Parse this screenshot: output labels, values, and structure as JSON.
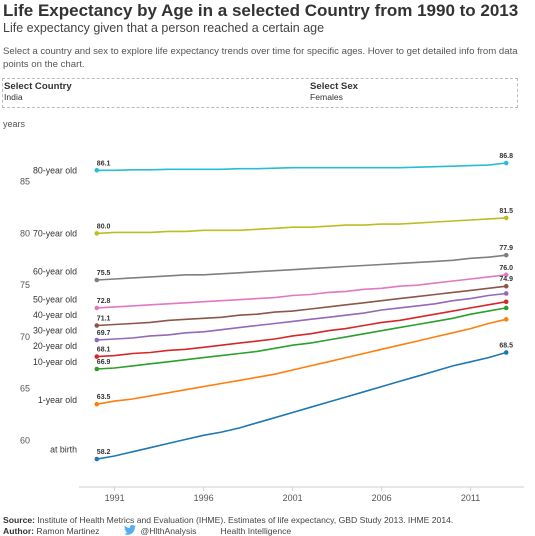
{
  "header": {
    "title": "Life Expectancy by Age in a selected Country from 1990 to 2013",
    "subtitle": "Life expectancy given that a person reached a certain age",
    "description": "Select a country and sex to explore life expectancy trends over time for specific ages. Hover to get detailed info from data points on the chart."
  },
  "filters": {
    "country": {
      "label": "Select Country",
      "value": "India"
    },
    "sex": {
      "label": "Select Sex",
      "value": "Females"
    }
  },
  "footer": {
    "source_label": "Source:",
    "source_text": "Institute of Health Metrics and Evaluation (IHME). Estimates of life expectancy, GBD Study 2013. IHME 2014.",
    "author_label": "Author:",
    "author_name": "Ramon Martinez",
    "twitter_icon": "twitter-bird-icon",
    "twitter_handle": "@HlthAnalysis",
    "org": "Health Intelligence"
  },
  "chart_data": {
    "type": "line",
    "yunit": "years",
    "xlim": [
      1989,
      2014
    ],
    "ylim": [
      55.5,
      89.8
    ],
    "xticks": [
      1991,
      1996,
      2001,
      2006,
      2011
    ],
    "yticks": [
      60,
      65,
      70,
      75,
      80,
      85
    ],
    "grid": false,
    "x": [
      1990,
      1991,
      1992,
      1993,
      1994,
      1995,
      1996,
      1997,
      1998,
      1999,
      2000,
      2001,
      2002,
      2003,
      2004,
      2005,
      2006,
      2007,
      2008,
      2009,
      2010,
      2011,
      2012,
      2013
    ],
    "series": [
      {
        "name": "80-year old",
        "color": "#2bbcd4",
        "start_label": "86.1",
        "end_label": "86.8",
        "values": [
          86.1,
          86.1,
          86.15,
          86.15,
          86.2,
          86.2,
          86.2,
          86.2,
          86.25,
          86.25,
          86.3,
          86.35,
          86.35,
          86.35,
          86.35,
          86.35,
          86.35,
          86.35,
          86.4,
          86.45,
          86.5,
          86.55,
          86.6,
          86.8
        ]
      },
      {
        "name": "70-year old",
        "color": "#bcbd22",
        "start_label": "80.0",
        "end_label": "81.5",
        "values": [
          80.0,
          80.1,
          80.1,
          80.1,
          80.2,
          80.2,
          80.3,
          80.3,
          80.3,
          80.4,
          80.5,
          80.6,
          80.6,
          80.7,
          80.8,
          80.8,
          80.9,
          80.9,
          81.0,
          81.1,
          81.2,
          81.3,
          81.4,
          81.5
        ]
      },
      {
        "name": "60-year old",
        "color": "#7f7f7f",
        "start_label": "75.5",
        "end_label": "77.9",
        "values": [
          75.5,
          75.6,
          75.7,
          75.8,
          75.9,
          76.0,
          76.0,
          76.1,
          76.2,
          76.3,
          76.4,
          76.5,
          76.6,
          76.7,
          76.8,
          76.9,
          77.0,
          77.1,
          77.2,
          77.3,
          77.4,
          77.6,
          77.7,
          77.9
        ]
      },
      {
        "name": "50-year old",
        "color": "#e377c2",
        "start_label": "72.8",
        "end_label": "76.0",
        "values": [
          72.8,
          72.9,
          73.0,
          73.1,
          73.2,
          73.3,
          73.4,
          73.5,
          73.6,
          73.7,
          73.8,
          74.0,
          74.1,
          74.3,
          74.4,
          74.6,
          74.7,
          74.9,
          75.0,
          75.2,
          75.4,
          75.6,
          75.8,
          76.0
        ]
      },
      {
        "name": "40-year old",
        "color": "#8c564b",
        "start_label": "71.1",
        "end_label": "74.9",
        "values": [
          71.1,
          71.2,
          71.3,
          71.4,
          71.6,
          71.7,
          71.8,
          71.9,
          72.1,
          72.2,
          72.4,
          72.5,
          72.7,
          72.9,
          73.1,
          73.3,
          73.5,
          73.7,
          73.9,
          74.1,
          74.3,
          74.5,
          74.7,
          74.9
        ]
      },
      {
        "name": "30-year old",
        "color": "#9467bd",
        "start_label": "69.7",
        "end_label": "",
        "values": [
          69.7,
          69.8,
          69.9,
          70.1,
          70.2,
          70.4,
          70.5,
          70.7,
          70.9,
          71.1,
          71.3,
          71.5,
          71.7,
          71.9,
          72.1,
          72.3,
          72.6,
          72.8,
          73.0,
          73.2,
          73.5,
          73.7,
          74.0,
          74.2
        ]
      },
      {
        "name": "20-year old",
        "color": "#d62728",
        "start_label": "68.1",
        "end_label": "",
        "values": [
          68.1,
          68.2,
          68.4,
          68.5,
          68.7,
          68.8,
          69.0,
          69.2,
          69.4,
          69.6,
          69.8,
          70.1,
          70.3,
          70.6,
          70.8,
          71.1,
          71.4,
          71.6,
          71.9,
          72.2,
          72.5,
          72.8,
          73.1,
          73.4
        ]
      },
      {
        "name": "10-year old",
        "color": "#2ca02c",
        "start_label": "66.9",
        "end_label": "",
        "values": [
          66.9,
          67.0,
          67.2,
          67.4,
          67.6,
          67.8,
          68.0,
          68.2,
          68.4,
          68.6,
          68.9,
          69.2,
          69.4,
          69.7,
          70.0,
          70.3,
          70.6,
          70.9,
          71.2,
          71.5,
          71.8,
          72.2,
          72.5,
          72.8
        ]
      },
      {
        "name": "1-year old",
        "color": "#ff7f0e",
        "start_label": "63.5",
        "end_label": "",
        "values": [
          63.5,
          63.8,
          64.0,
          64.3,
          64.6,
          64.9,
          65.2,
          65.5,
          65.8,
          66.1,
          66.4,
          66.8,
          67.2,
          67.6,
          68.0,
          68.4,
          68.8,
          69.2,
          69.6,
          70.0,
          70.4,
          70.8,
          71.3,
          71.7
        ]
      },
      {
        "name": "at birth",
        "color": "#1f77b4",
        "start_label": "58.2",
        "end_label": "68.5",
        "values": [
          58.2,
          58.5,
          58.9,
          59.3,
          59.7,
          60.1,
          60.5,
          60.8,
          61.2,
          61.7,
          62.2,
          62.7,
          63.2,
          63.7,
          64.2,
          64.7,
          65.2,
          65.7,
          66.2,
          66.7,
          67.2,
          67.6,
          68.0,
          68.5
        ]
      }
    ],
    "series_label_y": [
      86.1,
      80.0,
      76.3,
      73.6,
      72.1,
      70.6,
      69.1,
      67.6,
      63.9,
      59.1
    ]
  }
}
